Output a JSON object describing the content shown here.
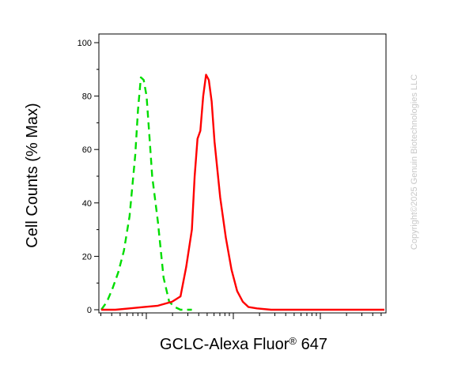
{
  "chart_data": {
    "type": "line",
    "ylabel": "Cell Counts (% Max)",
    "xlabel_main": "GCLC-Alexa Fluor",
    "xlabel_reg": "®",
    "xlabel_tail": " 647",
    "yticks": [
      "0",
      "20",
      "40",
      "60",
      "80",
      "100"
    ],
    "ylim": [
      0,
      100
    ],
    "xlim": [
      0,
      100
    ],
    "grid": false,
    "watermark": "Copyright©2025 Genuin Biotechnologies LLC",
    "series": [
      {
        "color": "#00dd00",
        "style": "dashed",
        "x": [
          0,
          2,
          4,
          6,
          8,
          10,
          12,
          13,
          14,
          15,
          16,
          17,
          18,
          20,
          22,
          24,
          26,
          28,
          30,
          32
        ],
        "y": [
          0,
          3,
          8,
          14,
          22,
          35,
          58,
          75,
          87,
          86,
          80,
          65,
          50,
          33,
          12,
          3,
          1,
          0,
          0,
          0
        ]
      },
      {
        "color": "#ff0000",
        "style": "solid",
        "x": [
          0,
          5,
          10,
          15,
          20,
          25,
          28,
          30,
          32,
          33,
          34,
          35,
          36,
          37,
          38,
          39,
          40,
          42,
          44,
          46,
          48,
          50,
          52,
          55,
          60,
          70,
          80,
          90,
          100
        ],
        "y": [
          0,
          0,
          0.5,
          1,
          1.5,
          3,
          5,
          16,
          30,
          50,
          64,
          67,
          80,
          88,
          86,
          78,
          63,
          42,
          27,
          15,
          7,
          3,
          1,
          0.5,
          0,
          0,
          0,
          0,
          0
        ]
      }
    ]
  }
}
